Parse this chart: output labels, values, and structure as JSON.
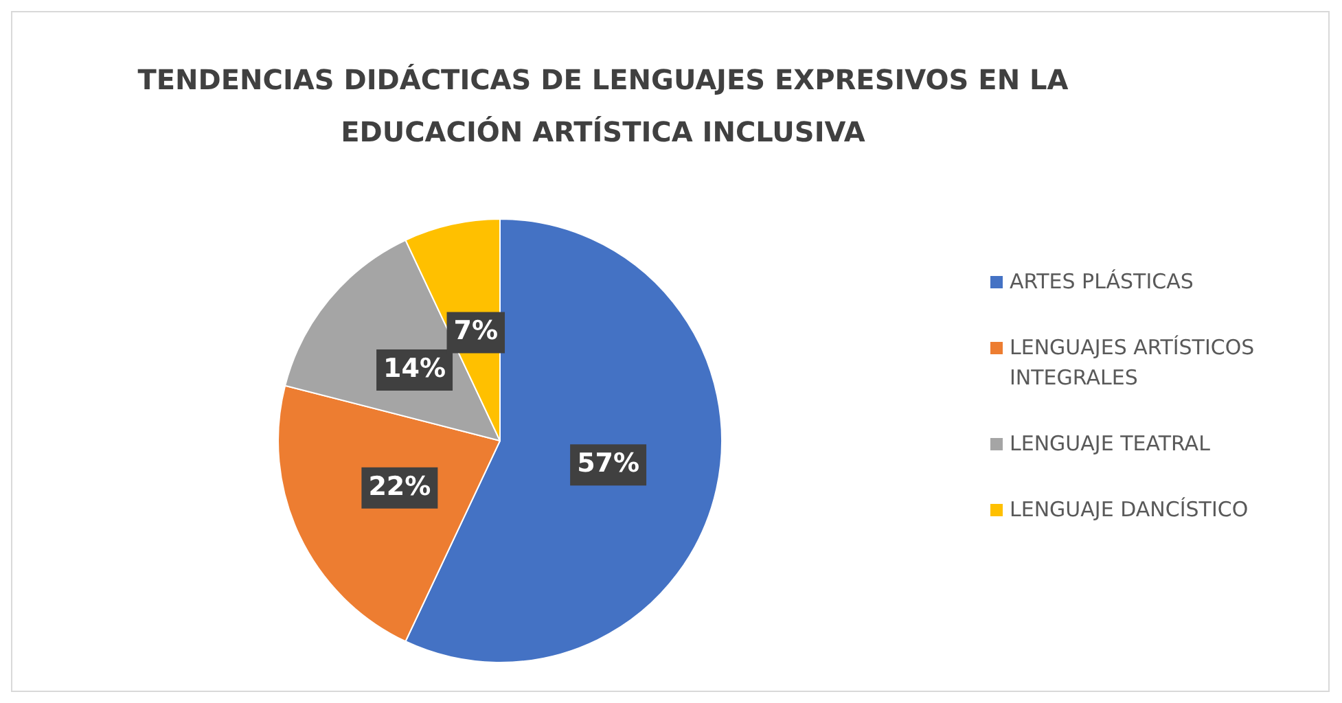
{
  "chart_data": {
    "type": "pie",
    "title": "TENDENCIAS DIDÁCTICAS DE LENGUAJES EXPRESIVOS EN LA EDUCACIÓN ARTÍSTICA INCLUSIVA",
    "categories": [
      "ARTES PLÁSTICAS",
      "LENGUAJES ARTÍSTICOS INTEGRALES",
      "LENGUAJE TEATRAL",
      "LENGUAJE DANCÍSTICO"
    ],
    "values": [
      57,
      22,
      14,
      7
    ],
    "colors": [
      "#4472c4",
      "#ed7d31",
      "#a5a5a5",
      "#ffc000"
    ],
    "value_labels": [
      "57%",
      "22%",
      "14%",
      "7%"
    ],
    "legend": "right"
  }
}
